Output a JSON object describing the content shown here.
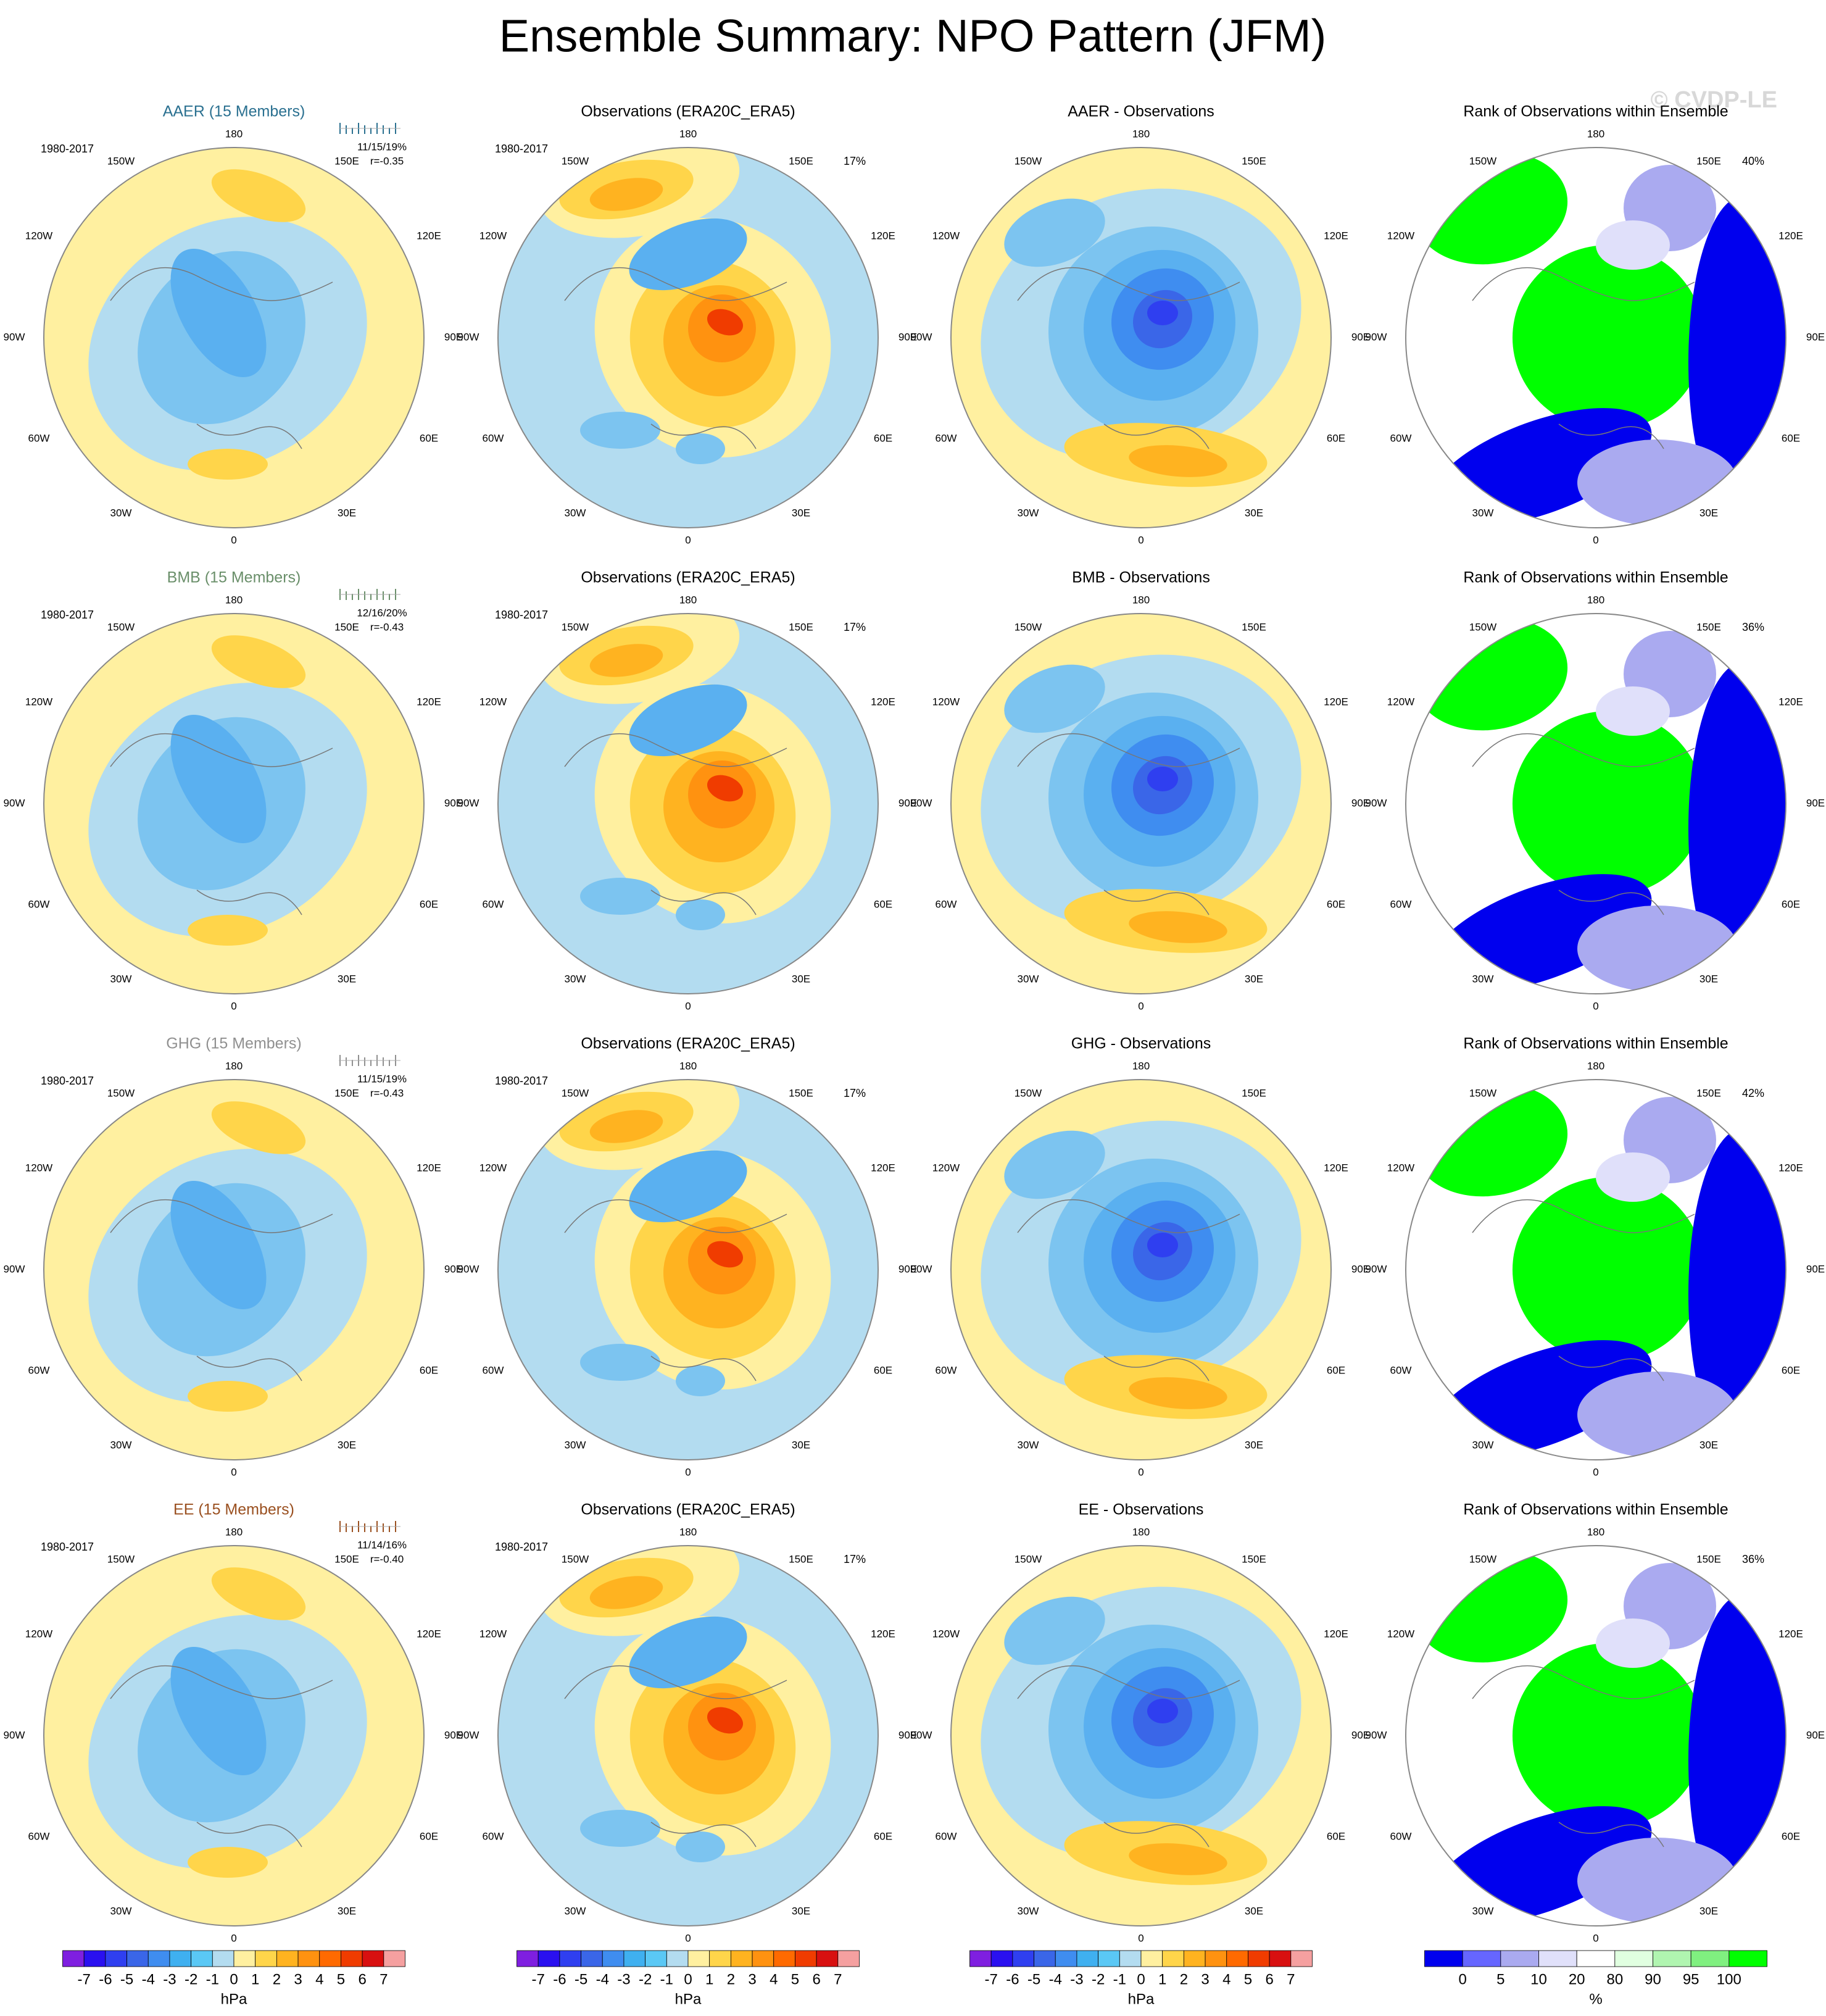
{
  "header": {
    "title": "Ensemble Summary: NPO Pattern (JFM)",
    "watermark": "© CVDP-LE"
  },
  "longitude_labels": [
    "180",
    "150W",
    "150E",
    "120W",
    "120E",
    "90W",
    "90E",
    "60W",
    "60E",
    "30W",
    "30E",
    "0"
  ],
  "rows": [
    {
      "panels": [
        {
          "title": "AAER (15 Members)",
          "title_color": "#2a7090",
          "period": "1980-2017",
          "stats": "11/15/19%",
          "correlation": "r=-0.35"
        },
        {
          "title": "Observations (ERA20C_ERA5)",
          "period": "1980-2017",
          "variance": "17%"
        },
        {
          "title": "AAER - Observations"
        },
        {
          "title": "Rank of Observations within Ensemble",
          "percent": "40%"
        }
      ]
    },
    {
      "panels": [
        {
          "title": "BMB (15 Members)",
          "title_color": "#6a8f6a",
          "period": "1980-2017",
          "stats": "12/16/20%",
          "correlation": "r=-0.43"
        },
        {
          "title": "Observations (ERA20C_ERA5)",
          "period": "1980-2017",
          "variance": "17%"
        },
        {
          "title": "BMB - Observations"
        },
        {
          "title": "Rank of Observations within Ensemble",
          "percent": "36%"
        }
      ]
    },
    {
      "panels": [
        {
          "title": "GHG (15 Members)",
          "title_color": "#909090",
          "period": "1980-2017",
          "stats": "11/15/19%",
          "correlation": "r=-0.43"
        },
        {
          "title": "Observations (ERA20C_ERA5)",
          "period": "1980-2017",
          "variance": "17%"
        },
        {
          "title": "GHG - Observations"
        },
        {
          "title": "Rank of Observations within Ensemble",
          "percent": "42%"
        }
      ]
    },
    {
      "panels": [
        {
          "title": "EE (15 Members)",
          "title_color": "#9a5020",
          "period": "1980-2017",
          "stats": "11/14/16%",
          "correlation": "r=-0.40"
        },
        {
          "title": "Observations (ERA20C_ERA5)",
          "period": "1980-2017",
          "variance": "17%"
        },
        {
          "title": "EE - Observations"
        },
        {
          "title": "Rank of Observations within Ensemble",
          "percent": "36%"
        }
      ]
    }
  ],
  "colorbars": [
    {
      "ticks": [
        -7,
        -6,
        -5,
        -4,
        -3,
        -2,
        -1,
        0,
        1,
        2,
        3,
        4,
        5,
        6,
        7
      ],
      "units": "hPa",
      "colors": [
        "#7f1fe0",
        "#2a10f0",
        "#2f3ff0",
        "#3a66e8",
        "#3f8df0",
        "#3fb0f0",
        "#5ac8f5",
        "#b3dcf0",
        "#fff0a0",
        "#ffd54a",
        "#ffb320",
        "#ff9210",
        "#ff6a00",
        "#f03c00",
        "#d81010",
        "#f5a0a0"
      ]
    },
    {
      "ticks": [
        -7,
        -6,
        -5,
        -4,
        -3,
        -2,
        -1,
        0,
        1,
        2,
        3,
        4,
        5,
        6,
        7
      ],
      "units": "hPa",
      "colors": [
        "#7f1fe0",
        "#2a10f0",
        "#2f3ff0",
        "#3a66e8",
        "#3f8df0",
        "#3fb0f0",
        "#5ac8f5",
        "#b3dcf0",
        "#fff0a0",
        "#ffd54a",
        "#ffb320",
        "#ff9210",
        "#ff6a00",
        "#f03c00",
        "#d81010",
        "#f5a0a0"
      ]
    },
    {
      "ticks": [
        -7,
        -6,
        -5,
        -4,
        -3,
        -2,
        -1,
        0,
        1,
        2,
        3,
        4,
        5,
        6,
        7
      ],
      "units": "hPa",
      "colors": [
        "#7f1fe0",
        "#2a10f0",
        "#2f3ff0",
        "#3a66e8",
        "#3f8df0",
        "#3fb0f0",
        "#5ac8f5",
        "#b3dcf0",
        "#fff0a0",
        "#ffd54a",
        "#ffb320",
        "#ff9210",
        "#ff6a00",
        "#f03c00",
        "#d81010",
        "#f5a0a0"
      ]
    },
    {
      "ticks": [
        0,
        5,
        10,
        20,
        80,
        90,
        95,
        100
      ],
      "units": "%",
      "colors": [
        "#0000ee",
        "#6666ff",
        "#aaaaf0",
        "#e0e0fa",
        "#ffffff",
        "#e0ffe0",
        "#b0f5b0",
        "#80f080",
        "#00ff00"
      ]
    }
  ]
}
